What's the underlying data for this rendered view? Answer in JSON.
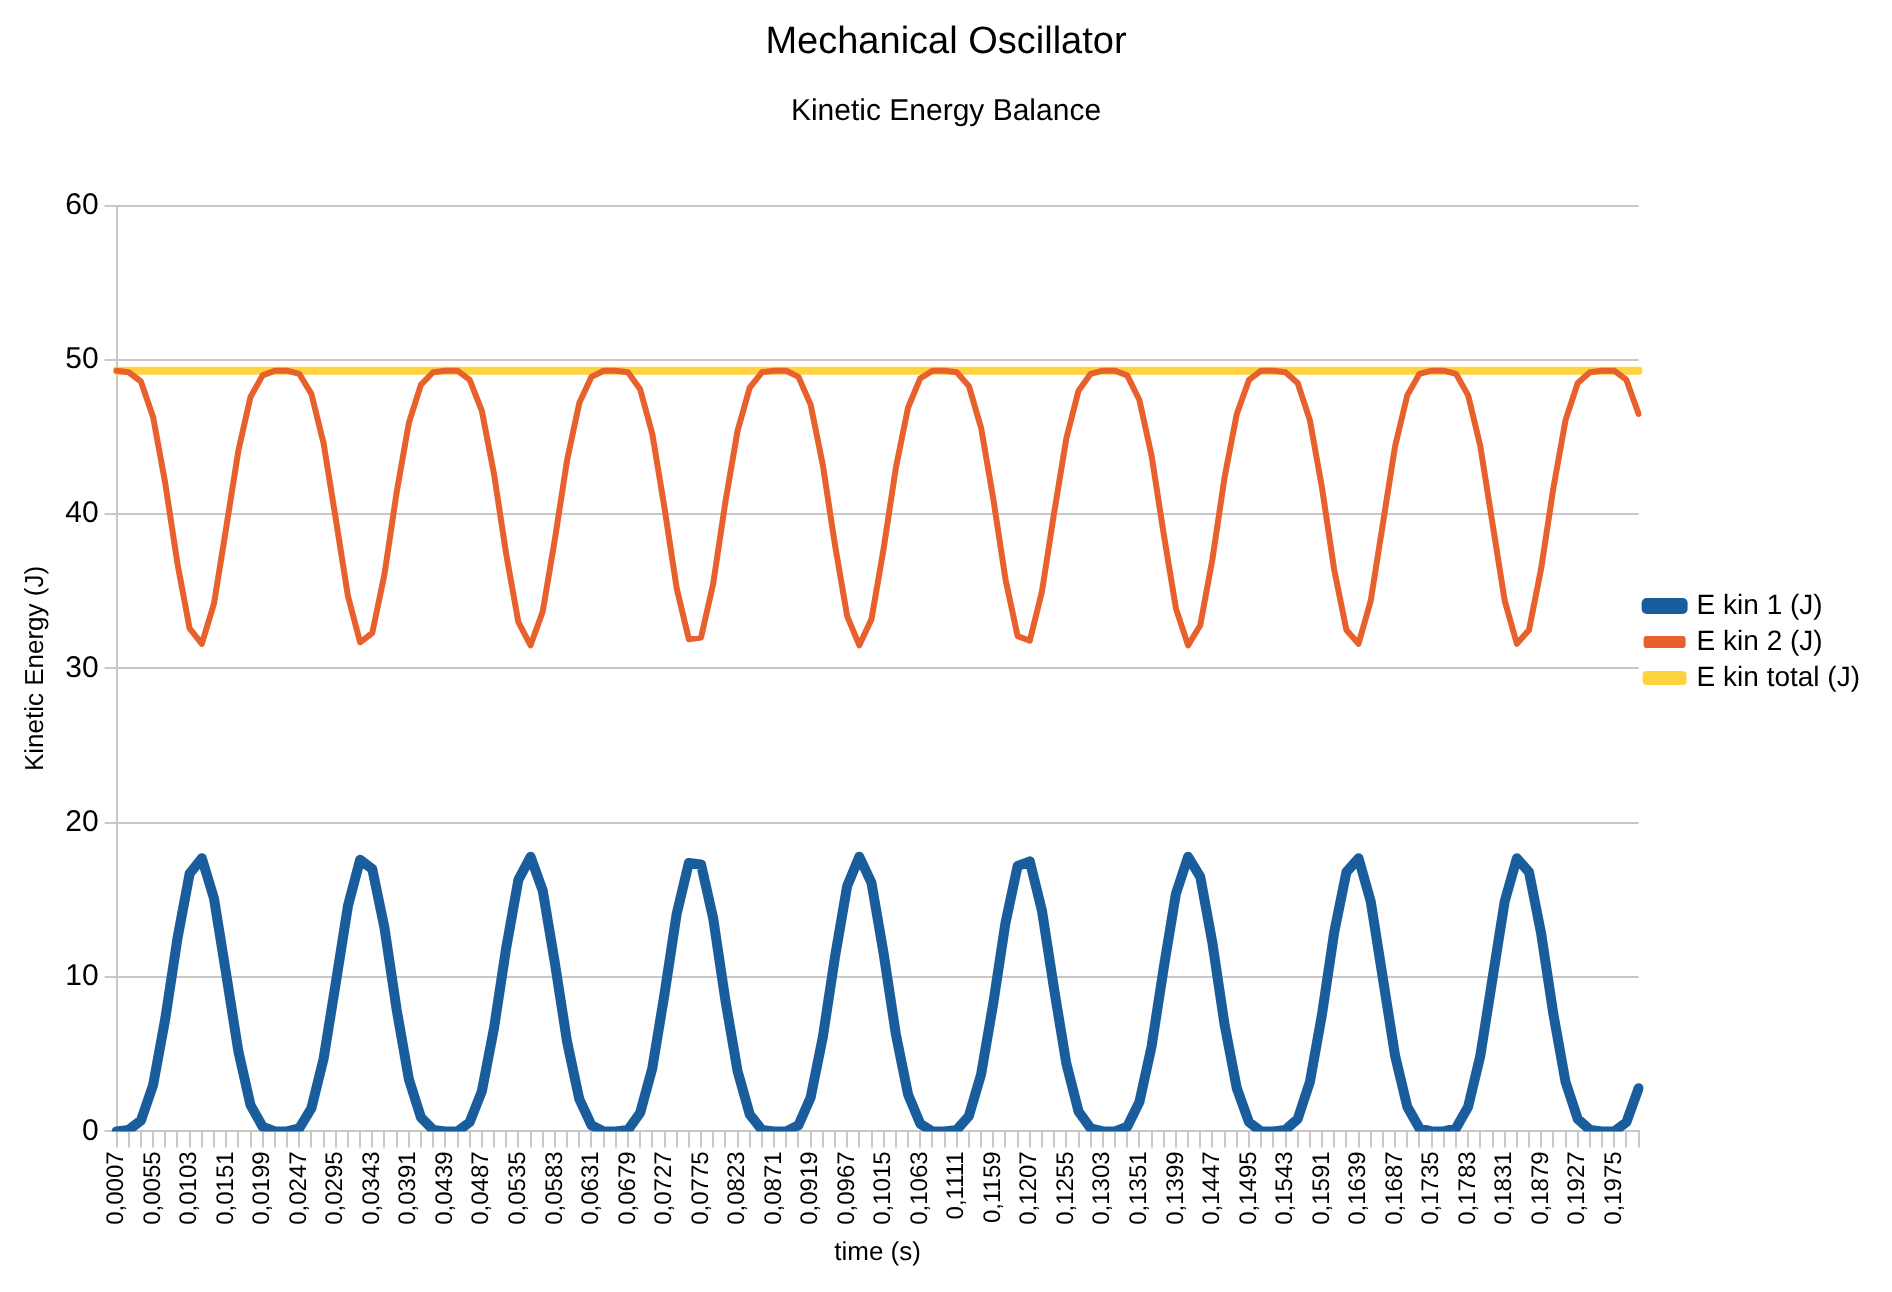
{
  "chart_data": {
    "type": "line",
    "title": "Mechanical Oscillator",
    "subtitle": "Kinetic Energy Balance",
    "xlabel": "time (s)",
    "ylabel": "Kinetic Energy (J)",
    "categories": [
      "0,0007",
      null,
      null,
      "0,0055",
      null,
      null,
      "0,0103",
      null,
      null,
      "0,0151",
      null,
      null,
      "0,0199",
      null,
      null,
      "0,0247",
      null,
      null,
      "0,0295",
      null,
      null,
      "0,0343",
      null,
      null,
      "0,0391",
      null,
      null,
      "0,0439",
      null,
      null,
      "0,0487",
      null,
      null,
      "0,0535",
      null,
      null,
      "0,0583",
      null,
      null,
      "0,0631",
      null,
      null,
      "0,0679",
      null,
      null,
      "0,0727",
      null,
      null,
      "0,0775",
      null,
      null,
      "0,0823",
      null,
      null,
      "0,0871",
      null,
      null,
      "0,0919",
      null,
      null,
      "0,0967",
      null,
      null,
      "0,1015",
      null,
      null,
      "0,1063",
      null,
      null,
      "0,1111",
      null,
      null,
      "0,1159",
      null,
      null,
      "0,1207",
      null,
      null,
      "0,1255",
      null,
      null,
      "0,1303",
      null,
      null,
      "0,1351",
      null,
      null,
      "0,1399",
      null,
      null,
      "0,1447",
      null,
      null,
      "0,1495",
      null,
      null,
      "0,1543",
      null,
      null,
      "0,1591",
      null,
      null,
      "0,1639",
      null,
      null,
      "0,1687",
      null,
      null,
      "0,1735",
      null,
      null,
      "0,1783",
      null,
      null,
      "0,1831",
      null,
      null,
      "0,1879",
      null,
      null,
      "0,1927",
      null,
      null,
      "0,1975",
      null,
      null
    ],
    "series": [
      {
        "name": "E kin 1 (J)",
        "color": "#1a5d9c",
        "values": [
          0.0,
          0.1,
          0.7,
          3.0,
          7.3,
          12.5,
          16.7,
          17.7,
          15.1,
          10.2,
          5.2,
          1.7,
          0.3,
          0.0,
          0.0,
          0.2,
          1.5,
          4.7,
          9.6,
          14.6,
          17.6,
          17.0,
          13.2,
          7.9,
          3.4,
          0.9,
          0.1,
          0.0,
          0.0,
          0.6,
          2.6,
          6.7,
          11.9,
          16.3,
          17.8,
          15.6,
          10.9,
          5.8,
          2.1,
          0.4,
          0.0,
          0.0,
          0.1,
          1.2,
          4.1,
          8.9,
          14.1,
          17.4,
          17.3,
          13.8,
          8.5,
          3.9,
          1.1,
          0.1,
          0.0,
          0.0,
          0.4,
          2.2,
          6.1,
          11.3,
          15.9,
          17.8,
          16.1,
          11.5,
          6.3,
          2.4,
          0.5,
          0.0,
          0.0,
          0.1,
          1.0,
          3.7,
          8.3,
          13.5,
          17.2,
          17.5,
          14.3,
          9.2,
          4.4,
          1.3,
          0.2,
          0.0,
          0.0,
          0.3,
          1.9,
          5.5,
          10.6,
          15.4,
          17.8,
          16.5,
          12.2,
          6.9,
          2.8,
          0.6,
          0.0,
          0.0,
          0.1,
          0.8,
          3.2,
          7.6,
          12.9,
          16.8,
          17.7,
          14.9,
          9.9,
          4.9,
          1.6,
          0.2,
          0.0,
          0.0,
          0.2,
          1.6,
          4.9,
          9.9,
          14.9,
          17.7,
          16.8,
          12.8,
          7.6,
          3.2,
          0.8,
          0.1,
          0.0,
          0.0,
          0.6,
          2.8
        ]
      },
      {
        "name": "E kin 2 (J)",
        "color": "#e8602c",
        "values": [
          49.3,
          49.2,
          48.6,
          46.3,
          42.0,
          36.8,
          32.6,
          31.6,
          34.2,
          39.1,
          44.1,
          47.6,
          49.0,
          49.3,
          49.3,
          49.1,
          47.8,
          44.6,
          39.7,
          34.7,
          31.7,
          32.3,
          36.1,
          41.4,
          45.9,
          48.4,
          49.2,
          49.3,
          49.3,
          48.7,
          46.7,
          42.6,
          37.4,
          33.0,
          31.5,
          33.7,
          38.4,
          43.5,
          47.2,
          48.9,
          49.3,
          49.3,
          49.2,
          48.1,
          45.2,
          40.4,
          35.2,
          31.9,
          32.0,
          35.5,
          40.8,
          45.4,
          48.2,
          49.2,
          49.3,
          49.3,
          48.9,
          47.1,
          43.2,
          38.0,
          33.4,
          31.5,
          33.2,
          37.8,
          43.0,
          46.9,
          48.8,
          49.3,
          49.3,
          49.2,
          48.3,
          45.6,
          41.0,
          35.8,
          32.1,
          31.8,
          35.0,
          40.1,
          44.9,
          48.0,
          49.1,
          49.3,
          49.3,
          49.0,
          47.4,
          43.8,
          38.7,
          33.9,
          31.5,
          32.8,
          37.1,
          42.4,
          46.5,
          48.7,
          49.3,
          49.3,
          49.2,
          48.5,
          46.1,
          41.7,
          36.4,
          32.5,
          31.6,
          34.4,
          39.4,
          44.4,
          47.7,
          49.1,
          49.3,
          49.3,
          49.1,
          47.7,
          44.4,
          39.4,
          34.4,
          31.6,
          32.5,
          36.5,
          41.7,
          46.1,
          48.5,
          49.2,
          49.3,
          49.3,
          48.7,
          46.5
        ]
      },
      {
        "name": "E kin total (J)",
        "color": "#ffd23f",
        "values": [
          49.3,
          49.3,
          49.3,
          49.3,
          49.3,
          49.3,
          49.3,
          49.3,
          49.3,
          49.3,
          49.3,
          49.3,
          49.3,
          49.3,
          49.3,
          49.3,
          49.3,
          49.3,
          49.3,
          49.3,
          49.3,
          49.3,
          49.3,
          49.3,
          49.3,
          49.3,
          49.3,
          49.3,
          49.3,
          49.3,
          49.3,
          49.3,
          49.3,
          49.3,
          49.3,
          49.3,
          49.3,
          49.3,
          49.3,
          49.3,
          49.3,
          49.3,
          49.3,
          49.3,
          49.3,
          49.3,
          49.3,
          49.3,
          49.3,
          49.3,
          49.3,
          49.3,
          49.3,
          49.3,
          49.3,
          49.3,
          49.3,
          49.3,
          49.3,
          49.3,
          49.3,
          49.3,
          49.3,
          49.3,
          49.3,
          49.3,
          49.3,
          49.3,
          49.3,
          49.3,
          49.3,
          49.3,
          49.3,
          49.3,
          49.3,
          49.3,
          49.3,
          49.3,
          49.3,
          49.3,
          49.3,
          49.3,
          49.3,
          49.3,
          49.3,
          49.3,
          49.3,
          49.3,
          49.3,
          49.3,
          49.3,
          49.3,
          49.3,
          49.3,
          49.3,
          49.3,
          49.3,
          49.3,
          49.3,
          49.3,
          49.3,
          49.3,
          49.3,
          49.3,
          49.3,
          49.3,
          49.3,
          49.3,
          49.3,
          49.3,
          49.3,
          49.3,
          49.3,
          49.3,
          49.3,
          49.3,
          49.3,
          49.3,
          49.3,
          49.3,
          49.3,
          49.3,
          49.3,
          49.3,
          49.3,
          49.3
        ]
      }
    ],
    "ylim": [
      0,
      60
    ],
    "yticks": [
      0,
      10,
      20,
      30,
      40,
      50,
      60
    ],
    "grid": "y",
    "legend": "right",
    "marker": "none",
    "line_style": "solid"
  }
}
